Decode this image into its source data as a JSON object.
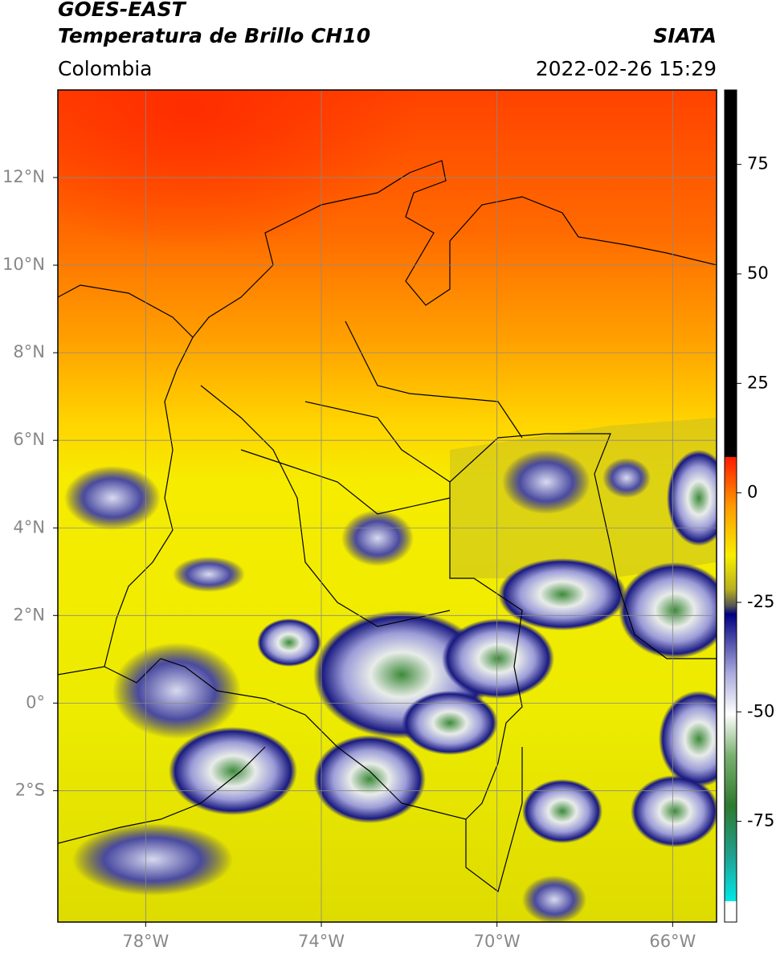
{
  "header": {
    "title": "GOES-EAST",
    "subtitle": "Temperatura de Brillo CH10",
    "region": "Colombia",
    "source": "SIATA",
    "datetime": "2022-02-26 15:29"
  },
  "map": {
    "xlim": [
      -80,
      -65
    ],
    "ylim": [
      -5,
      14
    ],
    "xticks": [
      {
        "value": -78,
        "label": "78°W"
      },
      {
        "value": -74,
        "label": "74°W"
      },
      {
        "value": -70,
        "label": "70°W"
      },
      {
        "value": -66,
        "label": "66°W"
      }
    ],
    "yticks": [
      {
        "value": 12,
        "label": "12°N"
      },
      {
        "value": 10,
        "label": "10°N"
      },
      {
        "value": 8,
        "label": "8°N"
      },
      {
        "value": 6,
        "label": "6°N"
      },
      {
        "value": 4,
        "label": "4°N"
      },
      {
        "value": 2,
        "label": "2°N"
      },
      {
        "value": 0,
        "label": "0°"
      },
      {
        "value": -2,
        "label": "2°S"
      }
    ],
    "grid": true
  },
  "colorbar": {
    "lim": [
      -98,
      92
    ],
    "ticks": [
      75,
      50,
      25,
      0,
      -25,
      -50,
      -75
    ]
  }
}
